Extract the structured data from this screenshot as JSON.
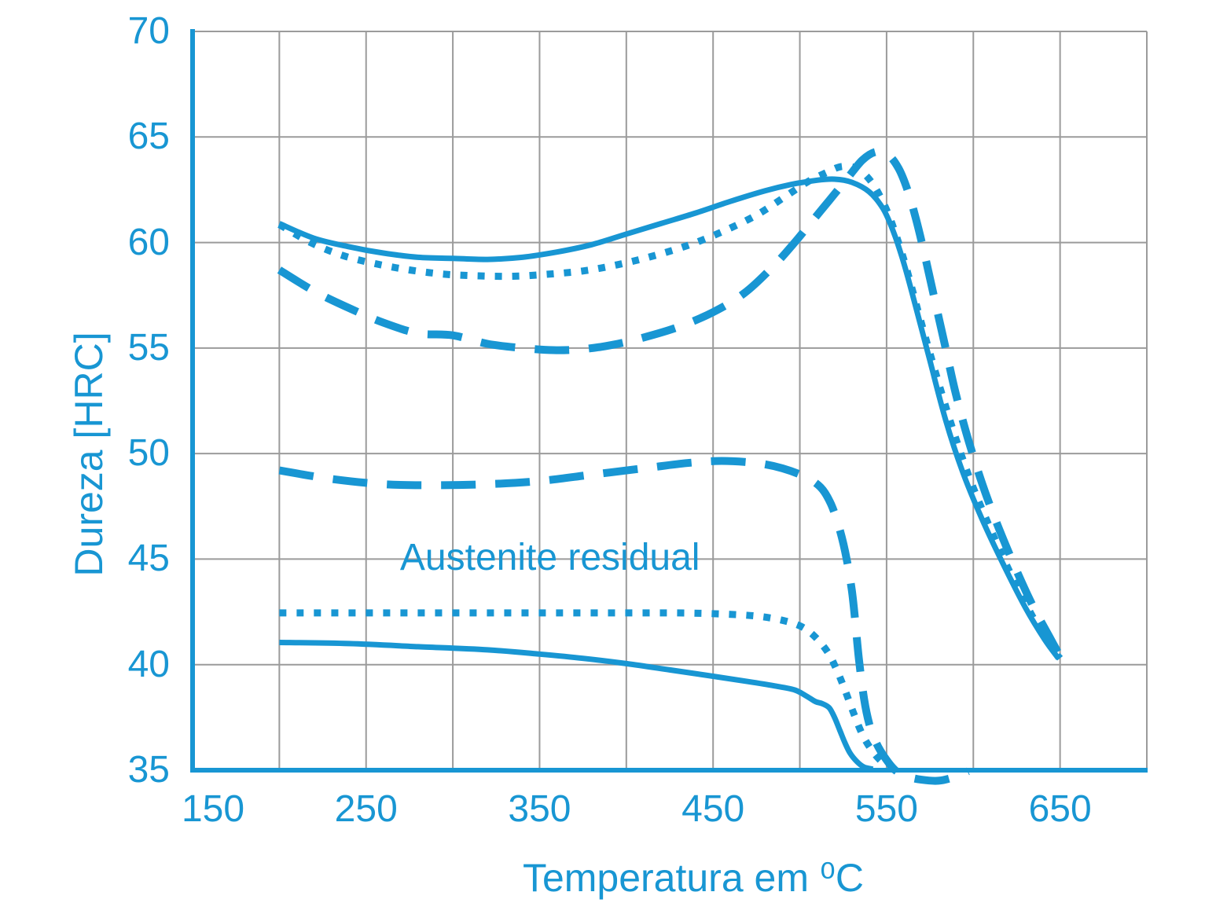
{
  "chart_data": {
    "type": "line",
    "title": "",
    "xlabel": "Temperatura em ⁰C",
    "ylabel": "Dureza [HRC]",
    "annotation": {
      "text": "Austenite residual",
      "x": 356,
      "y": 45.05
    },
    "xlim": [
      150,
      700
    ],
    "ylim": [
      35,
      70
    ],
    "x_grid_step": 50,
    "y_grid_step": 5,
    "x_tick_labels": [
      150,
      250,
      350,
      450,
      550,
      650
    ],
    "y_tick_labels": [
      70,
      65,
      60,
      55,
      50,
      45,
      40,
      35
    ],
    "grid": true,
    "legend": "none",
    "colors": {
      "line": "#1896d3",
      "grid": "#9b9b9b",
      "axis": "#1896d3",
      "text": "#1896d3",
      "background": "#ffffff"
    },
    "series": [
      {
        "name": "hardness-solid",
        "style": "solid",
        "points": [
          [
            200,
            60.9
          ],
          [
            220,
            60.2
          ],
          [
            240,
            59.8
          ],
          [
            260,
            59.5
          ],
          [
            280,
            59.3
          ],
          [
            300,
            59.25
          ],
          [
            320,
            59.2
          ],
          [
            340,
            59.3
          ],
          [
            360,
            59.55
          ],
          [
            380,
            59.9
          ],
          [
            400,
            60.4
          ],
          [
            420,
            60.9
          ],
          [
            440,
            61.4
          ],
          [
            460,
            61.95
          ],
          [
            480,
            62.45
          ],
          [
            495,
            62.75
          ],
          [
            510,
            62.95
          ],
          [
            520,
            63.0
          ],
          [
            530,
            62.85
          ],
          [
            540,
            62.4
          ],
          [
            548,
            61.6
          ],
          [
            554,
            60.5
          ],
          [
            560,
            59.0
          ],
          [
            567,
            56.9
          ],
          [
            575,
            54.4
          ],
          [
            584,
            51.6
          ],
          [
            594,
            49.1
          ],
          [
            605,
            46.9
          ],
          [
            617,
            44.8
          ],
          [
            630,
            42.7
          ],
          [
            641,
            41.2
          ],
          [
            649,
            40.3
          ]
        ]
      },
      {
        "name": "hardness-dotted",
        "style": "dotted",
        "points": [
          [
            200,
            60.85
          ],
          [
            218,
            60.0
          ],
          [
            236,
            59.4
          ],
          [
            255,
            59.0
          ],
          [
            275,
            58.7
          ],
          [
            295,
            58.5
          ],
          [
            315,
            58.42
          ],
          [
            335,
            58.4
          ],
          [
            355,
            58.5
          ],
          [
            375,
            58.65
          ],
          [
            395,
            58.95
          ],
          [
            415,
            59.35
          ],
          [
            435,
            59.85
          ],
          [
            455,
            60.5
          ],
          [
            475,
            61.3
          ],
          [
            492,
            62.2
          ],
          [
            505,
            62.9
          ],
          [
            515,
            63.3
          ],
          [
            524,
            63.6
          ],
          [
            533,
            63.5
          ],
          [
            541,
            62.9
          ],
          [
            548,
            61.9
          ],
          [
            554,
            60.7
          ],
          [
            561,
            58.9
          ],
          [
            569,
            56.5
          ],
          [
            578,
            53.9
          ],
          [
            588,
            51.2
          ],
          [
            598,
            48.8
          ],
          [
            609,
            46.6
          ],
          [
            621,
            44.4
          ],
          [
            634,
            42.3
          ],
          [
            645,
            40.8
          ],
          [
            650,
            40.3
          ]
        ]
      },
      {
        "name": "hardness-dashed",
        "style": "dashed",
        "points": [
          [
            200,
            58.7
          ],
          [
            220,
            57.7
          ],
          [
            240,
            56.9
          ],
          [
            260,
            56.2
          ],
          [
            280,
            55.7
          ],
          [
            300,
            55.6
          ],
          [
            320,
            55.2
          ],
          [
            340,
            55.0
          ],
          [
            358,
            54.9
          ],
          [
            375,
            54.95
          ],
          [
            392,
            55.15
          ],
          [
            410,
            55.5
          ],
          [
            430,
            56.0
          ],
          [
            450,
            56.7
          ],
          [
            468,
            57.6
          ],
          [
            485,
            58.9
          ],
          [
            497,
            60.0
          ],
          [
            507,
            61.0
          ],
          [
            517,
            62.0
          ],
          [
            527,
            63.0
          ],
          [
            536,
            63.9
          ],
          [
            544,
            64.3
          ],
          [
            551,
            64.15
          ],
          [
            557,
            63.5
          ],
          [
            562,
            62.5
          ],
          [
            567,
            61.1
          ],
          [
            572,
            59.4
          ],
          [
            578,
            57.2
          ],
          [
            584,
            55.0
          ],
          [
            590,
            52.8
          ],
          [
            598,
            50.4
          ],
          [
            608,
            47.9
          ],
          [
            620,
            45.4
          ],
          [
            633,
            43.0
          ],
          [
            644,
            41.3
          ],
          [
            650,
            40.4
          ]
        ]
      },
      {
        "name": "austenite-dashed",
        "style": "dashed",
        "points": [
          [
            200,
            49.2
          ],
          [
            230,
            48.8
          ],
          [
            260,
            48.55
          ],
          [
            290,
            48.5
          ],
          [
            320,
            48.55
          ],
          [
            350,
            48.7
          ],
          [
            380,
            49.0
          ],
          [
            410,
            49.3
          ],
          [
            435,
            49.55
          ],
          [
            455,
            49.65
          ],
          [
            475,
            49.55
          ],
          [
            490,
            49.3
          ],
          [
            503,
            48.9
          ],
          [
            512,
            48.4
          ],
          [
            518,
            47.6
          ],
          [
            523,
            46.4
          ],
          [
            527,
            45.0
          ],
          [
            530,
            43.5
          ],
          [
            532,
            42.0
          ],
          [
            534,
            40.3
          ],
          [
            537,
            38.4
          ],
          [
            540,
            37.2
          ],
          [
            544,
            36.3
          ],
          [
            549,
            35.6
          ],
          [
            555,
            35.0
          ],
          [
            562,
            34.7
          ],
          [
            570,
            34.55
          ],
          [
            580,
            34.5
          ],
          [
            590,
            34.7
          ],
          [
            597,
            34.95
          ]
        ]
      },
      {
        "name": "austenite-dotted",
        "style": "dotted",
        "points": [
          [
            200,
            42.45
          ],
          [
            240,
            42.45
          ],
          [
            280,
            42.45
          ],
          [
            320,
            42.45
          ],
          [
            360,
            42.45
          ],
          [
            400,
            42.45
          ],
          [
            430,
            42.45
          ],
          [
            455,
            42.4
          ],
          [
            475,
            42.3
          ],
          [
            490,
            42.1
          ],
          [
            501,
            41.8
          ],
          [
            509,
            41.3
          ],
          [
            516,
            40.6
          ],
          [
            521,
            39.8
          ],
          [
            526,
            38.8
          ],
          [
            531,
            37.7
          ],
          [
            536,
            36.7
          ],
          [
            541,
            36.0
          ],
          [
            546,
            35.5
          ],
          [
            551,
            35.15
          ],
          [
            555,
            35.0
          ]
        ]
      },
      {
        "name": "austenite-solid",
        "style": "solid",
        "points": [
          [
            200,
            41.05
          ],
          [
            240,
            41.0
          ],
          [
            280,
            40.85
          ],
          [
            320,
            40.7
          ],
          [
            350,
            40.5
          ],
          [
            375,
            40.3
          ],
          [
            400,
            40.05
          ],
          [
            425,
            39.75
          ],
          [
            450,
            39.45
          ],
          [
            470,
            39.2
          ],
          [
            485,
            39.0
          ],
          [
            497,
            38.8
          ],
          [
            504,
            38.5
          ],
          [
            509,
            38.25
          ],
          [
            513,
            38.15
          ],
          [
            517,
            37.95
          ],
          [
            520,
            37.5
          ],
          [
            523,
            36.9
          ],
          [
            526,
            36.3
          ],
          [
            529,
            35.8
          ],
          [
            533,
            35.4
          ],
          [
            537,
            35.15
          ],
          [
            542,
            35.05
          ]
        ]
      }
    ]
  }
}
